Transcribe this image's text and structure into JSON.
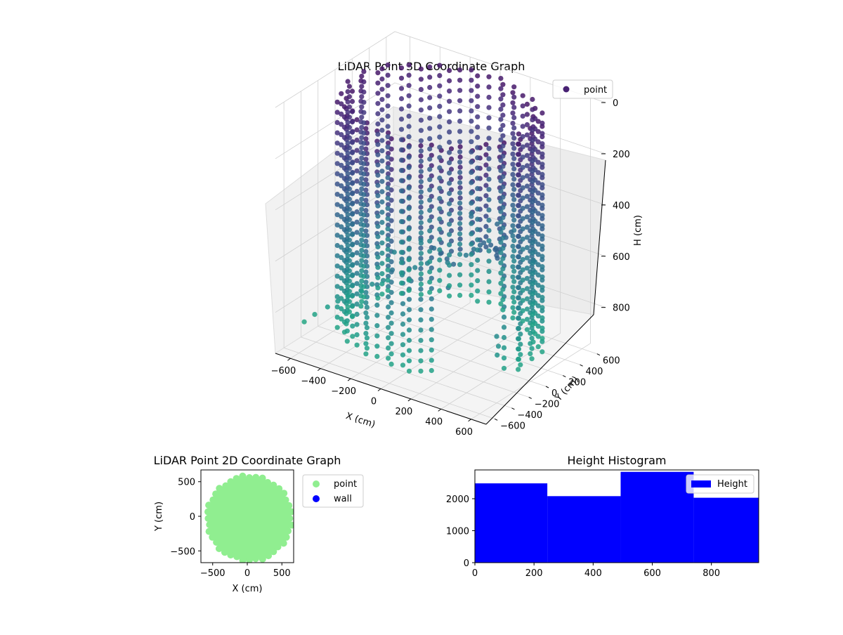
{
  "figure": {
    "background": "#ffffff"
  },
  "chart_data": [
    {
      "type": "scatter3d",
      "title": "LiDAR Point 3D Coordinate Graph",
      "xlabel": "X (cm)",
      "ylabel": "Y (cm)",
      "zlabel": "H (cm)",
      "xlim": [
        -700,
        700
      ],
      "ylim": [
        -700,
        700
      ],
      "zlim": [
        0,
        960
      ],
      "z_inverted": true,
      "xticks": [
        "−600",
        "−400",
        "−200",
        "0",
        "200",
        "400",
        "600"
      ],
      "yticks": [
        "−600",
        "−400",
        "−200",
        "0",
        "200",
        "400",
        "600"
      ],
      "zticks": [
        "0",
        "200",
        "400",
        "600",
        "800"
      ],
      "grid": true,
      "legend": {
        "position": "top-right",
        "entries": [
          {
            "label": "point",
            "color": "#482173"
          }
        ]
      },
      "colormap": "viridis",
      "shape": {
        "type": "wall-ring",
        "center": [
          0,
          0
        ],
        "radius_range": [
          520,
          600
        ],
        "height_range": [
          10,
          900
        ],
        "columns": 60
      },
      "scattered_points": [
        [
          -650,
          -450,
          880
        ],
        [
          -620,
          -380,
          860
        ],
        [
          -580,
          -300,
          840
        ],
        [
          -540,
          -250,
          820
        ],
        [
          -500,
          -200,
          800
        ],
        [
          -460,
          -120,
          790
        ],
        [
          -420,
          -60,
          770
        ],
        [
          -380,
          0,
          760
        ],
        [
          -300,
          80,
          740
        ],
        [
          -260,
          160,
          720
        ],
        [
          -200,
          200,
          700
        ],
        [
          -100,
          260,
          690
        ],
        [
          0,
          300,
          650
        ],
        [
          80,
          250,
          600
        ],
        [
          150,
          200,
          560
        ],
        [
          220,
          120,
          520
        ],
        [
          300,
          60,
          500
        ],
        [
          380,
          -20,
          480
        ],
        [
          420,
          -100,
          460
        ],
        [
          480,
          -180,
          440
        ],
        [
          520,
          -260,
          430
        ],
        [
          560,
          -320,
          420
        ],
        [
          600,
          -400,
          700
        ],
        [
          640,
          -450,
          720
        ],
        [
          660,
          -500,
          740
        ],
        [
          -100,
          100,
          600
        ],
        [
          0,
          0,
          580
        ],
        [
          100,
          -100,
          560
        ],
        [
          200,
          -200,
          540
        ],
        [
          -200,
          -100,
          620
        ],
        [
          300,
          300,
          500
        ],
        [
          -300,
          300,
          650
        ],
        [
          150,
          400,
          520
        ],
        [
          -150,
          -300,
          610
        ],
        [
          250,
          -350,
          590
        ],
        [
          350,
          150,
          480
        ],
        [
          -50,
          450,
          540
        ],
        [
          420,
          350,
          600
        ],
        [
          -420,
          200,
          700
        ],
        [
          60,
          -450,
          580
        ]
      ]
    },
    {
      "type": "scatter",
      "title": "LiDAR Point 2D Coordinate Graph",
      "xlabel": "X (cm)",
      "ylabel": "Y (cm)",
      "xlim": [
        -670,
        670
      ],
      "ylim": [
        -670,
        670
      ],
      "xticks": [
        -500,
        0,
        500
      ],
      "yticks": [
        -500,
        0,
        500
      ],
      "legend": {
        "position": "right",
        "entries": [
          {
            "label": "point",
            "color": "#90ee90"
          },
          {
            "label": "wall",
            "color": "#0000ff"
          }
        ]
      },
      "series": [
        {
          "name": "point",
          "color": "#90ee90",
          "region": {
            "type": "disk",
            "center": [
              30,
              -30
            ],
            "radius": 600
          }
        },
        {
          "name": "wall",
          "color": "#0000ff",
          "values": []
        }
      ]
    },
    {
      "type": "histogram",
      "title": "Height Histogram",
      "xlim": [
        0,
        960
      ],
      "ylim": [
        0,
        2900
      ],
      "xticks": [
        0,
        200,
        400,
        600,
        800
      ],
      "yticks": [
        0,
        1000,
        2000
      ],
      "legend": {
        "position": "top-right",
        "entries": [
          {
            "label": "Height",
            "color": "#0000ff"
          }
        ]
      },
      "series": [
        {
          "name": "Height",
          "color": "#0000ff"
        }
      ],
      "bins": [
        {
          "start": 0,
          "end": 245,
          "value": 2480
        },
        {
          "start": 245,
          "end": 493,
          "value": 2080
        },
        {
          "start": 493,
          "end": 740,
          "value": 2840
        },
        {
          "start": 740,
          "end": 960,
          "value": 2030
        }
      ]
    }
  ]
}
